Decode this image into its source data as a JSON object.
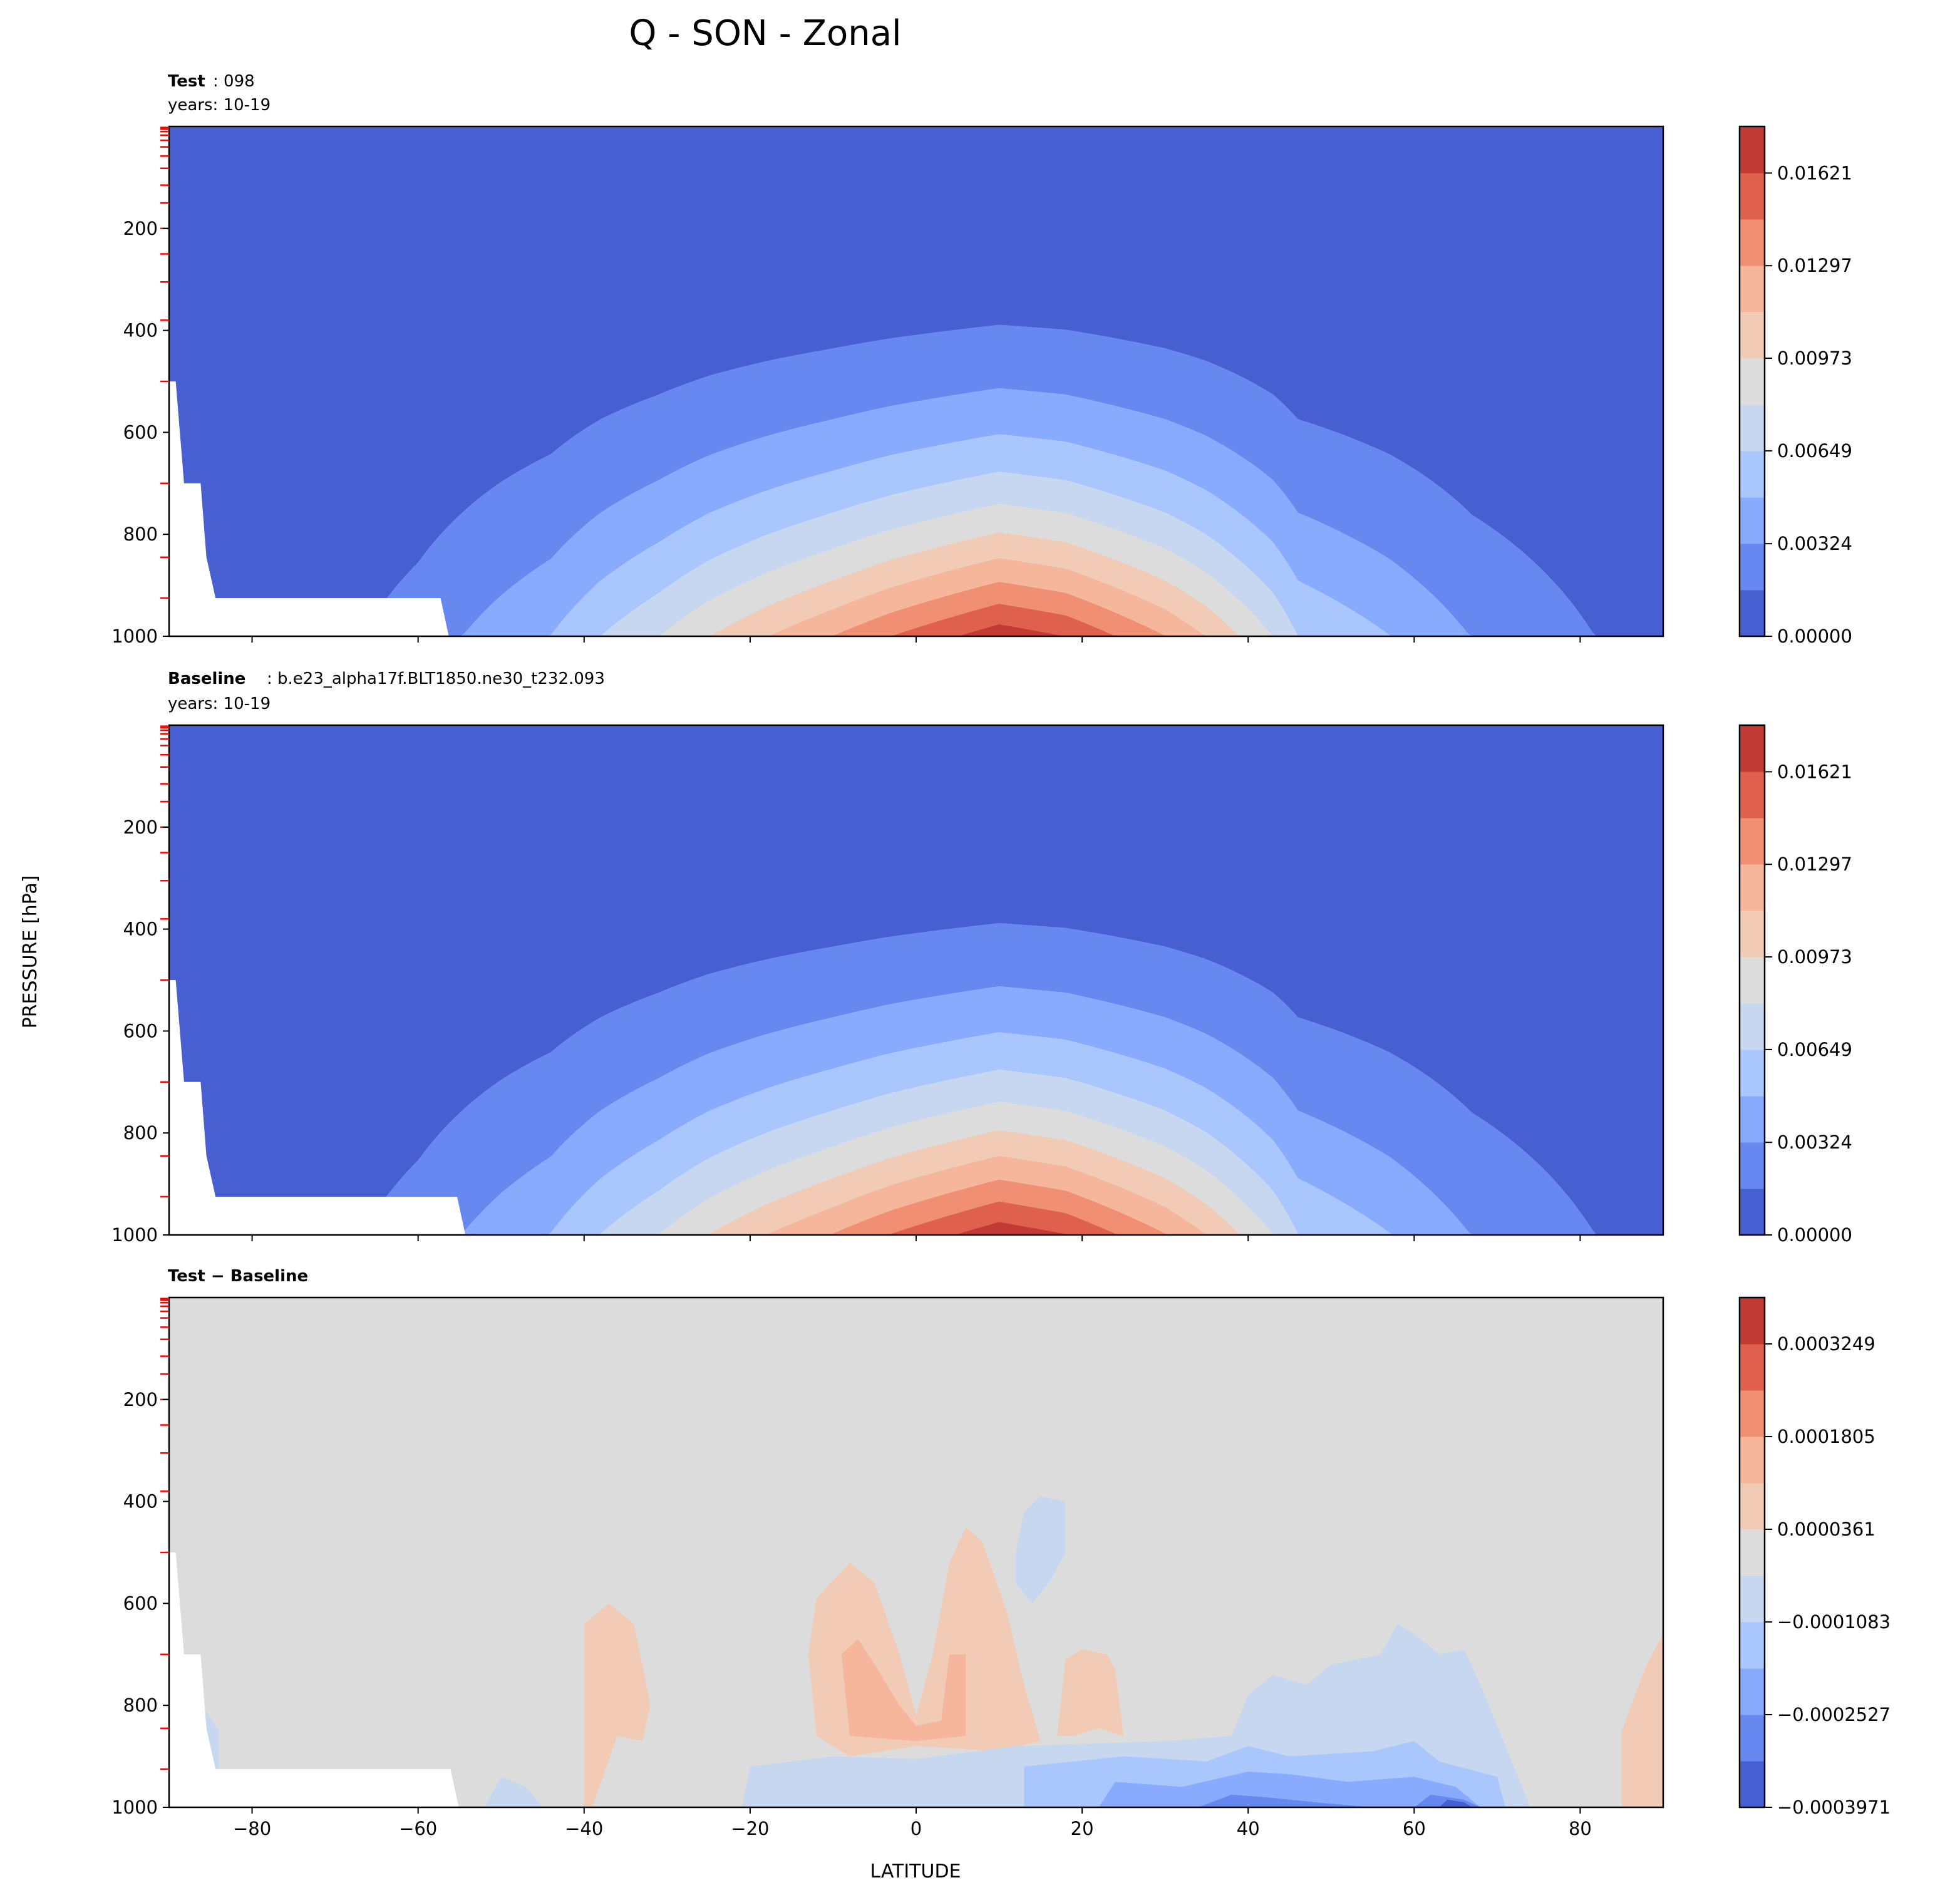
{
  "figure_title": "Q - SON - Zonal",
  "ylabel": "PRESSURE [hPa]",
  "xlabel": "LATITUDE",
  "colors": [
    "#485fd1",
    "#6788ee",
    "#88abfd",
    "#aac7fd",
    "#c7d7f0",
    "#dddcdc",
    "#f2cbb7",
    "#f5b69c",
    "#f08f72",
    "#de604d",
    "#c13b34"
  ],
  "chart_data": [
    {
      "type": "contour",
      "label_bold": "Test",
      "label_rest": ": 098",
      "years": "years: 10-19",
      "xlim": [
        -90,
        90
      ],
      "ylim": [
        1000,
        0
      ],
      "yticks": [
        "200",
        "400",
        "600",
        "800",
        "1000"
      ],
      "xticks": [
        "-80",
        "-60",
        "-40",
        "-20",
        "0",
        "20",
        "40",
        "60",
        "80"
      ],
      "colorbar_range": [
        0,
        0.01784
      ],
      "colorbar_ticks": [
        "0.00000",
        "0.00324",
        "0.00649",
        "0.00973",
        "0.01297",
        "0.01621"
      ]
    },
    {
      "type": "contour",
      "label_bold": "Baseline",
      "label_rest": ": b.e23_alpha17f.BLT1850.ne30_t232.093",
      "years": "years: 10-19",
      "xlim": [
        -90,
        90
      ],
      "ylim": [
        1000,
        0
      ],
      "yticks": [
        "200",
        "400",
        "600",
        "800",
        "1000"
      ],
      "xticks": [
        "-80",
        "-60",
        "-40",
        "-20",
        "0",
        "20",
        "40",
        "60",
        "80"
      ],
      "colorbar_range": [
        0,
        0.01784
      ],
      "colorbar_ticks": [
        "0.00000",
        "0.00324",
        "0.00649",
        "0.00973",
        "0.01297",
        "0.01621"
      ]
    },
    {
      "type": "contour",
      "label_bold": "Test − Baseline",
      "label_rest": "",
      "years": "",
      "xlim": [
        -90,
        90
      ],
      "ylim": [
        1000,
        0
      ],
      "yticks": [
        "200",
        "400",
        "600",
        "800",
        "1000"
      ],
      "xticks": [
        "−80",
        "−60",
        "−40",
        "−20",
        "0",
        "20",
        "40",
        "60",
        "80"
      ],
      "colorbar_range": [
        -0.0003971,
        0.0003971
      ],
      "colorbar_ticks": [
        "−0.0003971",
        "−0.0002527",
        "−0.0001083",
        "0.0000361",
        "0.0001805",
        "0.0003249"
      ]
    }
  ]
}
